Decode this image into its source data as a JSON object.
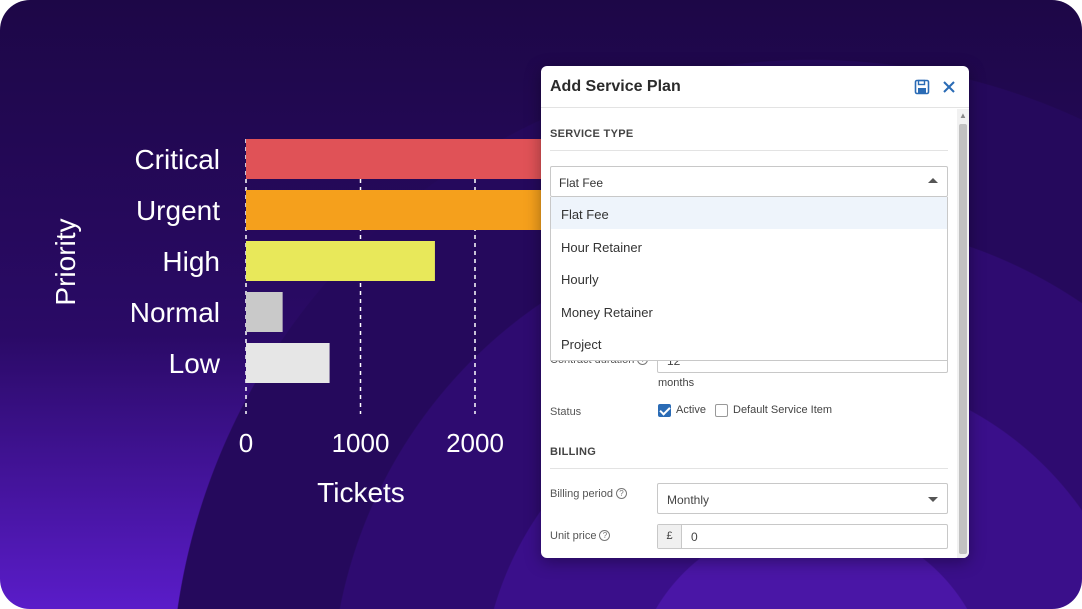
{
  "chart_data": {
    "type": "bar",
    "orientation": "horizontal",
    "categories": [
      "Critical",
      "Urgent",
      "High",
      "Normal",
      "Low"
    ],
    "values": [
      2700,
      2650,
      1650,
      320,
      730
    ],
    "bar_colors": [
      "#e05257",
      "#f5a01c",
      "#e8e85a",
      "#c9c9c9",
      "#e6e6e6"
    ],
    "xticks": [
      0,
      1000,
      2000
    ],
    "xlim": [
      0,
      2700
    ],
    "xlabel": "Tickets",
    "ylabel": "Priority",
    "grid": "dashed vertical"
  },
  "dialog": {
    "title": "Add Service Plan",
    "icons": {
      "save": "save-icon",
      "close": "close-icon"
    },
    "service_type": {
      "section_title": "SERVICE TYPE",
      "selected": "Flat Fee",
      "options": [
        "Flat Fee",
        "Hour Retainer",
        "Hourly",
        "Money Retainer",
        "Project"
      ]
    },
    "contract_duration": {
      "label": "Contract duration",
      "value": "12",
      "unit": "months"
    },
    "status": {
      "label": "Status",
      "active_label": "Active",
      "active_checked": true,
      "default_label": "Default Service Item",
      "default_checked": false
    },
    "billing": {
      "section_title": "BILLING",
      "period_label": "Billing period",
      "period_value": "Monthly",
      "price_label": "Unit price",
      "currency": "£",
      "price_value": "0"
    }
  }
}
